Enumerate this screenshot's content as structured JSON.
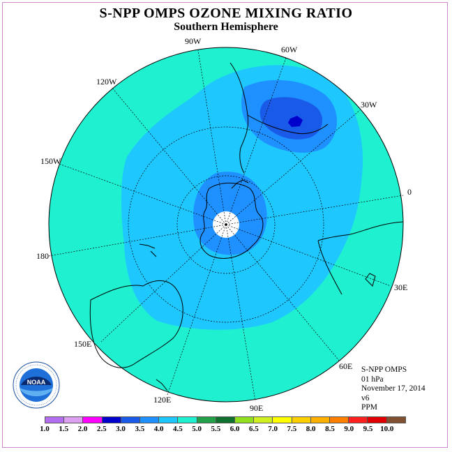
{
  "title": "S-NPP OMPS OZONE MIXING RATIO",
  "subtitle": "Southern Hemisphere",
  "longitude_labels": [
    {
      "id": "lon-90w",
      "text": "90W"
    },
    {
      "id": "lon-60w",
      "text": "60W"
    },
    {
      "id": "lon-30w",
      "text": "30W"
    },
    {
      "id": "lon-120w",
      "text": "120W"
    },
    {
      "id": "lon-150w",
      "text": "150W"
    },
    {
      "id": "lon-0",
      "text": "0"
    },
    {
      "id": "lon-180",
      "text": "180"
    },
    {
      "id": "lon-30e",
      "text": "30E"
    },
    {
      "id": "lon-150e",
      "text": "150E"
    },
    {
      "id": "lon-60e",
      "text": "60E"
    },
    {
      "id": "lon-120e",
      "text": "120E"
    },
    {
      "id": "lon-90e",
      "text": "90E"
    }
  ],
  "info": {
    "instrument": "S-NPP OMPS",
    "level": "01 hPa",
    "date": "November 17, 2014",
    "version": "v6",
    "units": "PPM"
  },
  "colorbar": {
    "labels": [
      "1.0",
      "1.5",
      "2.0",
      "2.5",
      "3.0",
      "3.5",
      "4.0",
      "4.5",
      "5.0",
      "5.5",
      "6.0",
      "6.5",
      "7.0",
      "7.5",
      "8.0",
      "8.5",
      "9.0",
      "9.5",
      "10.0"
    ],
    "colors": [
      "#b36ef0",
      "#dda0f0",
      "#ff00ff",
      "#0000cc",
      "#1a5ae8",
      "#1e90ff",
      "#1ec8ff",
      "#1ef0d0",
      "#22a04a",
      "#107030",
      "#90e020",
      "#d0f020",
      "#ffff00",
      "#ffd000",
      "#ffb000",
      "#ff8000",
      "#ff2020",
      "#e00000",
      "#805030"
    ]
  },
  "logo": {
    "text": "NOAA",
    "ring_text": "NATIONAL OCEANIC AND ATMOSPHERIC ADMINISTRATION · U.S. DEPARTMENT OF COMMERCE"
  }
}
